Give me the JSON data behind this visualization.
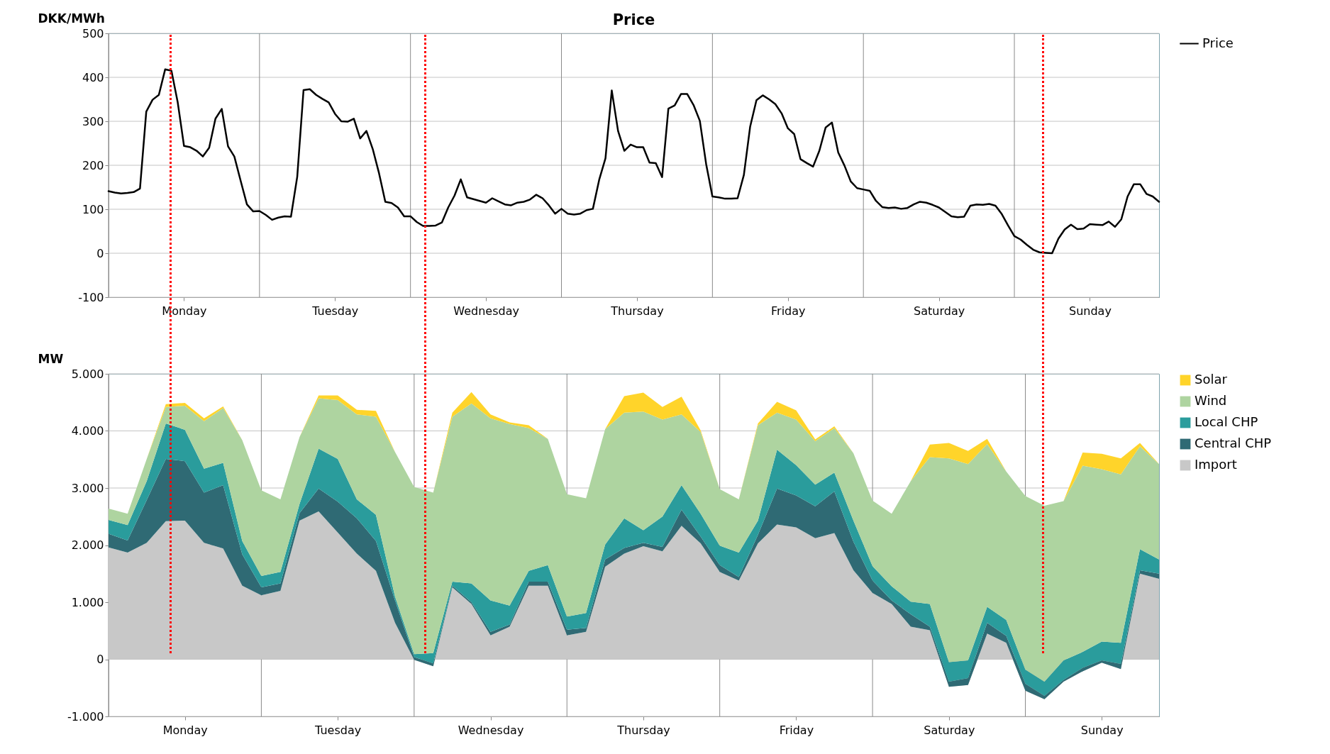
{
  "chart_data": [
    {
      "type": "line",
      "title": "Price",
      "ylabel": "DKK/MWh",
      "categories": [
        null,
        null,
        null,
        null,
        null,
        null,
        null,
        null,
        null,
        null,
        null,
        null,
        "Monday",
        null,
        null,
        null,
        null,
        null,
        null,
        null,
        null,
        null,
        null,
        null,
        null,
        null,
        null,
        null,
        null,
        null,
        null,
        null,
        null,
        null,
        null,
        null,
        "Tuesday",
        null,
        null,
        null,
        null,
        null,
        null,
        null,
        null,
        null,
        null,
        null,
        null,
        null,
        null,
        null,
        null,
        null,
        null,
        null,
        null,
        null,
        null,
        null,
        "Wednesday",
        null,
        null,
        null,
        null,
        null,
        null,
        null,
        null,
        null,
        null,
        null,
        null,
        null,
        null,
        null,
        null,
        null,
        null,
        null,
        null,
        null,
        null,
        null,
        "Thursday",
        null,
        null,
        null,
        null,
        null,
        null,
        null,
        null,
        null,
        null,
        null,
        null,
        null,
        null,
        null,
        null,
        null,
        null,
        null,
        null,
        null,
        null,
        null,
        "Friday",
        null,
        null,
        null,
        null,
        null,
        null,
        null,
        null,
        null,
        null,
        null,
        null,
        null,
        null,
        null,
        null,
        null,
        null,
        null,
        null,
        null,
        null,
        null,
        "Saturday",
        null,
        null,
        null,
        null,
        null,
        null,
        null,
        null,
        null,
        null,
        null,
        null,
        null,
        null,
        null,
        null,
        null,
        null,
        null,
        null,
        null,
        null,
        null,
        "Sunday",
        null,
        null,
        null,
        null,
        null,
        null,
        null,
        null,
        null,
        null,
        null
      ],
      "series": [
        {
          "name": "Price",
          "color": "#000000",
          "values": [
            141,
            138,
            136,
            137,
            139,
            147,
            322,
            349,
            360,
            418,
            415,
            343,
            244,
            241,
            233,
            220,
            240,
            306,
            328,
            243,
            220,
            165,
            111,
            95,
            96,
            87,
            76,
            81,
            84,
            83,
            174,
            371,
            373,
            360,
            351,
            343,
            317,
            300,
            299,
            306,
            261,
            278,
            237,
            182,
            117,
            114,
            104,
            84,
            84,
            71,
            62,
            62,
            63,
            70,
            104,
            131,
            168,
            127,
            123,
            119,
            115,
            125,
            118,
            111,
            109,
            115,
            117,
            122,
            133,
            125,
            109,
            90,
            101,
            90,
            88,
            90,
            98,
            101,
            167,
            216,
            370,
            278,
            233,
            247,
            241,
            241,
            206,
            205,
            173,
            329,
            336,
            362,
            362,
            337,
            301,
            203,
            129,
            127,
            124,
            124,
            125,
            178,
            288,
            348,
            359,
            350,
            339,
            318,
            284,
            271,
            214,
            205,
            197,
            233,
            286,
            297,
            229,
            199,
            163,
            148,
            145,
            142,
            119,
            105,
            103,
            104,
            101,
            103,
            111,
            117,
            115,
            110,
            104,
            94,
            84,
            82,
            83,
            108,
            111,
            110,
            112,
            108,
            89,
            63,
            39,
            31,
            19,
            8,
            2,
            1,
            0,
            33,
            54,
            65,
            55,
            56,
            66,
            65,
            64,
            72,
            60,
            77,
            129,
            157,
            157,
            135,
            129,
            117
          ]
        }
      ],
      "ylim": [
        -100,
        500
      ],
      "yticks": [
        -100,
        0,
        100,
        200,
        300,
        400,
        500
      ],
      "grid": true,
      "legend": "right"
    },
    {
      "type": "area",
      "stacked": true,
      "ylabel": "MW",
      "categories": [
        null,
        null,
        null,
        null,
        "Monday",
        null,
        null,
        null,
        null,
        null,
        null,
        null,
        "Tuesday",
        null,
        null,
        null,
        null,
        null,
        null,
        null,
        "Wednesday",
        null,
        null,
        null,
        null,
        null,
        null,
        null,
        "Thursday",
        null,
        null,
        null,
        null,
        null,
        null,
        null,
        "Friday",
        null,
        null,
        null,
        null,
        null,
        null,
        null,
        "Saturday",
        null,
        null,
        null,
        null,
        null,
        null,
        null,
        "Sunday",
        null,
        null,
        null
      ],
      "series": [
        {
          "name": "Import",
          "color": "#c8c8c8",
          "values": [
            1960,
            1870,
            2040,
            2420,
            2430,
            2040,
            1940,
            1290,
            1120,
            1200,
            2430,
            2590,
            2220,
            1850,
            1550,
            640,
            -10,
            -120,
            1260,
            970,
            420,
            570,
            1290,
            1290,
            420,
            480,
            1620,
            1850,
            1980,
            1890,
            2340,
            2030,
            1530,
            1380,
            2030,
            2360,
            2310,
            2120,
            2210,
            1560,
            1160,
            970,
            570,
            510,
            -480,
            -450,
            450,
            290,
            -550,
            -700,
            -390,
            -210,
            -60,
            -170,
            1500,
            1410
          ]
        },
        {
          "name": "Central CHP",
          "color": "#2f6a74",
          "values": [
            240,
            210,
            750,
            1090,
            1040,
            880,
            1110,
            550,
            140,
            130,
            130,
            400,
            540,
            620,
            520,
            390,
            50,
            50,
            30,
            30,
            60,
            40,
            70,
            70,
            100,
            70,
            130,
            100,
            60,
            80,
            280,
            120,
            120,
            60,
            150,
            630,
            560,
            560,
            730,
            500,
            220,
            60,
            220,
            60,
            90,
            120,
            190,
            120,
            120,
            60,
            30,
            60,
            40,
            90,
            60,
            90
          ]
        },
        {
          "name": "Local CHP",
          "color": "#2a9c9c",
          "values": [
            240,
            270,
            330,
            620,
            550,
            420,
            390,
            230,
            200,
            200,
            160,
            700,
            750,
            330,
            460,
            70,
            50,
            180,
            70,
            330,
            550,
            330,
            190,
            290,
            230,
            260,
            260,
            520,
            220,
            530,
            430,
            400,
            340,
            430,
            250,
            680,
            530,
            380,
            330,
            370,
            250,
            250,
            220,
            400,
            340,
            310,
            280,
            280,
            250,
            250,
            340,
            280,
            330,
            370,
            370,
            250
          ]
        },
        {
          "name": "Wind",
          "color": "#aed4a0",
          "values": [
            200,
            200,
            390,
            290,
            420,
            830,
            960,
            1770,
            1500,
            1270,
            1170,
            880,
            1030,
            1490,
            1720,
            2530,
            2930,
            2810,
            2890,
            3150,
            3190,
            3180,
            2500,
            2210,
            2140,
            2010,
            2020,
            1850,
            2080,
            1700,
            1240,
            1430,
            990,
            930,
            1670,
            650,
            800,
            760,
            780,
            1180,
            1150,
            1270,
            2110,
            2570,
            3570,
            3440,
            2850,
            2600,
            3040,
            3080,
            2790,
            3260,
            3020,
            2950,
            1800,
            1670
          ]
        },
        {
          "name": "Solar",
          "color": "#ffd42a",
          "values": [
            0,
            0,
            0,
            50,
            50,
            50,
            30,
            0,
            0,
            0,
            0,
            50,
            80,
            80,
            100,
            0,
            0,
            0,
            70,
            200,
            70,
            30,
            50,
            0,
            0,
            0,
            0,
            290,
            330,
            220,
            310,
            30,
            0,
            0,
            30,
            190,
            160,
            30,
            30,
            0,
            0,
            0,
            0,
            220,
            270,
            230,
            90,
            0,
            0,
            0,
            0,
            230,
            270,
            280,
            60,
            0
          ]
        }
      ],
      "ylim": [
        -1000,
        5000
      ],
      "yticks": [
        {
          "value": -1000,
          "label": "-1.000"
        },
        {
          "value": 0,
          "label": "0"
        },
        {
          "value": 1000,
          "label": "1.000"
        },
        {
          "value": 2000,
          "label": "2.000"
        },
        {
          "value": 3000,
          "label": "3.000"
        },
        {
          "value": 4000,
          "label": "4.000"
        },
        {
          "value": 5000,
          "label": "5.000"
        }
      ],
      "grid": true,
      "legend": "right"
    }
  ]
}
